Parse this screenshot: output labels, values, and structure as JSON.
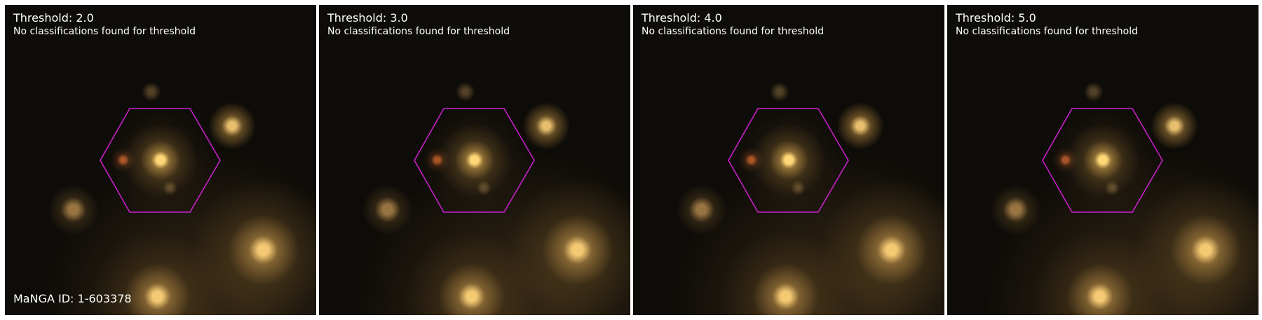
{
  "panels": [
    {
      "title": "Threshold: 2.0",
      "note": "No classifications found for threshold"
    },
    {
      "title": "Threshold: 3.0",
      "note": "No classifications found for threshold"
    },
    {
      "title": "Threshold: 4.0",
      "note": "No classifications found for threshold"
    },
    {
      "title": "Threshold: 5.0",
      "note": "No classifications found for threshold"
    }
  ],
  "manga_id": "MaNGA ID: 1-603378",
  "colors": {
    "hexagon": "#d020d0",
    "text": "#ffffff",
    "background": "#ffffff"
  },
  "icons": [
    "ifu-hexagon-overlay"
  ]
}
